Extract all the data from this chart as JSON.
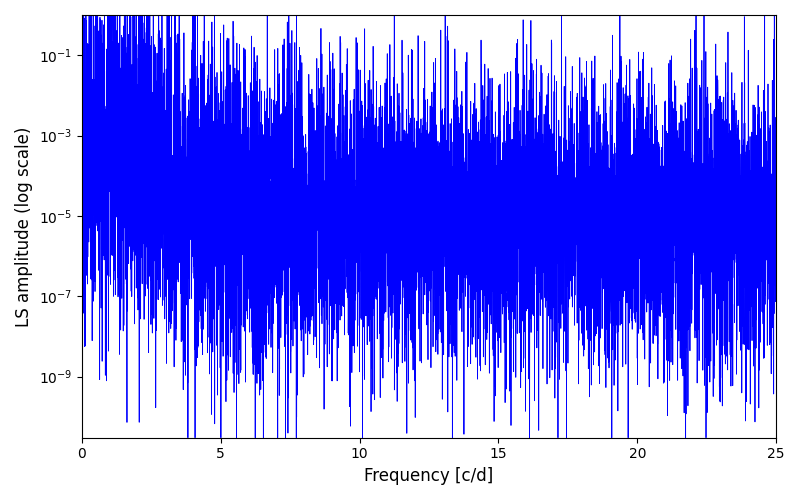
{
  "xlabel": "Frequency [c/d]",
  "ylabel": "LS amplitude (log scale)",
  "xmin": 0,
  "xmax": 25,
  "ymin": 3e-11,
  "ymax": 1.0,
  "line_color": "#0000FF",
  "linewidth": 0.6,
  "figsize": [
    8.0,
    5.0
  ],
  "dpi": 100,
  "seed": 12345,
  "n_points": 8000,
  "xlabel_fontsize": 12,
  "ylabel_fontsize": 12
}
